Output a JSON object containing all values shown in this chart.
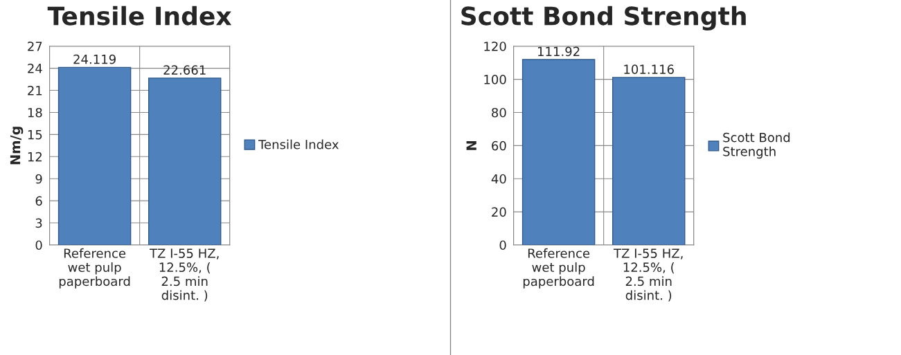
{
  "chart_data": [
    {
      "type": "bar",
      "title": "Tensile Index",
      "ylabel": "Nm/g",
      "categories": [
        "Reference wet pulp paperboard",
        "TZ I-55 HZ, 12.5%, ( 2.5 min disint. )"
      ],
      "series": [
        {
          "name": "Tensile Index",
          "color": "#4f81bd",
          "values": [
            24.119,
            22.661
          ]
        }
      ],
      "ylim": [
        0,
        27
      ],
      "yticks": [
        0,
        3,
        6,
        9,
        12,
        15,
        18,
        21,
        24,
        27
      ],
      "grid": true,
      "legend": "right",
      "data_labels": true
    },
    {
      "type": "bar",
      "title": "Scott Bond Strength",
      "ylabel": "N",
      "categories": [
        "Reference wet pulp paperboard",
        "TZ I-55 HZ, 12.5%, ( 2.5 min disint. )"
      ],
      "series": [
        {
          "name": "Scott Bond Strength",
          "color": "#4f81bd",
          "values": [
            111.92,
            101.116
          ]
        }
      ],
      "ylim": [
        0,
        120
      ],
      "yticks": [
        0,
        20,
        40,
        60,
        80,
        100,
        120
      ],
      "grid": true,
      "legend": "right",
      "data_labels": true
    }
  ]
}
